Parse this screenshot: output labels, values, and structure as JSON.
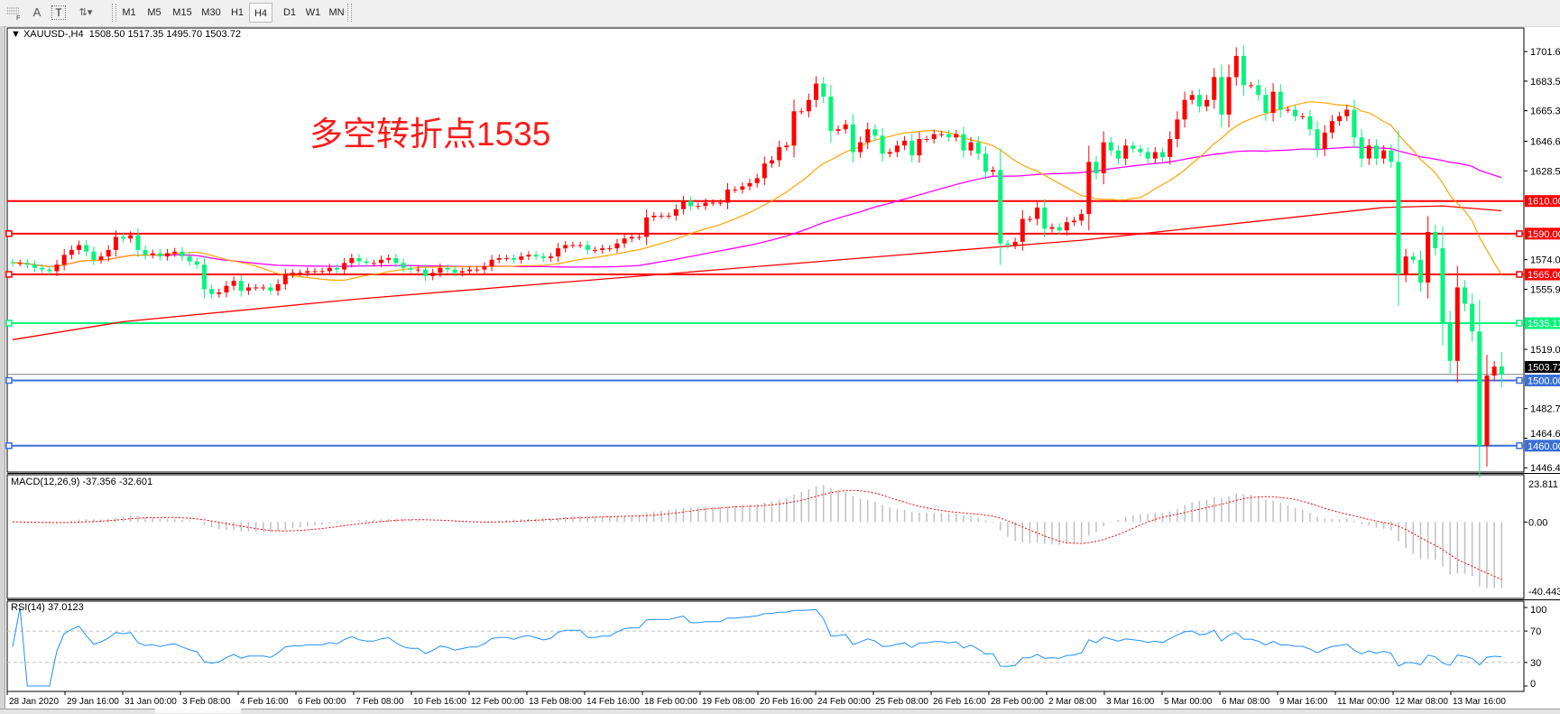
{
  "toolbar": {
    "tools": [
      {
        "name": "grid-f-icon",
        "label": "F"
      },
      {
        "name": "text-icon",
        "label": "A"
      },
      {
        "name": "text-label-icon",
        "label": "T"
      },
      {
        "name": "arrows-icon",
        "label": "⇅▾"
      }
    ],
    "timeframes": [
      "M1",
      "M5",
      "M15",
      "M30",
      "H1",
      "H4",
      "D1",
      "W1",
      "MN"
    ],
    "selected_timeframe": "H4"
  },
  "chart_header": {
    "symbol": "XAUUSD-,H4",
    "open": "1508.50",
    "high": "1517.35",
    "low": "1495.70",
    "close": "1503.72"
  },
  "annotation": "多空转折点1535",
  "colors": {
    "bull": "#ff0000",
    "bear": "#00f57a",
    "ma_fast": "#ffa500",
    "ma_mid": "#ff00ff",
    "ma_slow": "#ff0000",
    "macd_hist": "#c0c0c0",
    "macd_signal": "#ff0000",
    "rsi": "#1e90ff"
  },
  "chart_data": {
    "type": "candlestick",
    "symbol": "XAUUSD-",
    "timeframe": "H4",
    "ylim": [
      1443.8,
      1716.0
    ],
    "last_bar": {
      "open": 1508.5,
      "high": 1517.35,
      "low": 1495.7,
      "close": 1503.72
    },
    "close": [
      1572,
      1572,
      1571,
      1569,
      1568,
      1567,
      1571,
      1577,
      1580,
      1583,
      1579,
      1574,
      1576,
      1580,
      1588,
      1587,
      1589,
      1580,
      1577,
      1578,
      1576,
      1578,
      1579,
      1576,
      1573,
      1571,
      1556,
      1553,
      1554,
      1558,
      1561,
      1555,
      1557,
      1557,
      1557,
      1555,
      1559,
      1565,
      1566,
      1566,
      1567,
      1567,
      1567,
      1569,
      1568,
      1572,
      1575,
      1573,
      1572,
      1572,
      1574,
      1575,
      1572,
      1569,
      1568,
      1568,
      1564,
      1566,
      1569,
      1568,
      1566,
      1567,
      1568,
      1568,
      1570,
      1574,
      1575,
      1575,
      1574,
      1576,
      1577,
      1576,
      1575,
      1576,
      1581,
      1583,
      1583,
      1583,
      1580,
      1580,
      1581,
      1581,
      1584,
      1587,
      1588,
      1588,
      1600,
      1601,
      1601,
      1601,
      1605,
      1610,
      1607,
      1607,
      1609,
      1609,
      1609,
      1617,
      1617,
      1619,
      1621,
      1624,
      1633,
      1635,
      1643,
      1644,
      1665,
      1665,
      1672,
      1682,
      1674,
      1653,
      1654,
      1657,
      1640,
      1646,
      1654,
      1650,
      1639,
      1640,
      1644,
      1647,
      1638,
      1648,
      1648,
      1651,
      1651,
      1649,
      1651,
      1641,
      1646,
      1639,
      1628,
      1629,
      1584,
      1583,
      1585,
      1599,
      1599,
      1606,
      1593,
      1594,
      1592,
      1597,
      1598,
      1602,
      1634,
      1627,
      1646,
      1641,
      1636,
      1644,
      1642,
      1640,
      1636,
      1640,
      1637,
      1648,
      1660,
      1672,
      1675,
      1668,
      1672,
      1686,
      1663,
      1686,
      1699,
      1681,
      1681,
      1675,
      1664,
      1677,
      1666,
      1666,
      1662,
      1662,
      1654,
      1642,
      1652,
      1659,
      1662,
      1666,
      1649,
      1636,
      1644,
      1636,
      1641,
      1634,
      1565,
      1576,
      1574,
      1560,
      1591,
      1581,
      1535,
      1512,
      1557,
      1547,
      1530,
      1460,
      1503,
      1508.5,
      1503.72
    ],
    "price_ticks": [
      "1701.65",
      "1683.50",
      "1665.35",
      "1646.65",
      "1628.50",
      "1574.05",
      "1555.90",
      "1519.05",
      "1482.75",
      "1464.60",
      "1446.45"
    ],
    "x_labels": [
      "28 Jan 2020",
      "29 Jan 16:00",
      "31 Jan 00:00",
      "3 Feb 08:00",
      "4 Feb 16:00",
      "6 Feb 00:00",
      "7 Feb 08:00",
      "10 Feb 16:00",
      "12 Feb 00:00",
      "13 Feb 08:00",
      "14 Feb 16:00",
      "18 Feb 00:00",
      "19 Feb 08:00",
      "20 Feb 16:00",
      "24 Feb 00:00",
      "25 Feb 08:00",
      "26 Feb 16:00",
      "28 Feb 00:00",
      "2 Mar 08:00",
      "3 Mar 16:00",
      "5 Mar 00:00",
      "6 Mar 08:00",
      "9 Mar 16:00",
      "11 Mar 00:00",
      "12 Mar 08:00",
      "13 Mar 16:00"
    ],
    "horizontal_lines": [
      {
        "price": 1610.0,
        "label": "1610.00",
        "color": "#ff0000",
        "marked": false
      },
      {
        "price": 1590.0,
        "label": "1590.00",
        "color": "#ff0000",
        "marked": true
      },
      {
        "price": 1565.0,
        "label": "1565.00",
        "color": "#ff0000",
        "marked": true
      },
      {
        "price": 1535.11,
        "label": "1535.11",
        "color": "#00f57a",
        "marked": true
      },
      {
        "price": 1500.0,
        "label": "1500.00",
        "color": "#3a6fd8",
        "marked": true
      },
      {
        "price": 1460.0,
        "label": "1460.00",
        "color": "#3a6fd8",
        "marked": true
      }
    ],
    "current_price": {
      "price": 1503.72,
      "label": "1503.72",
      "color": "#808080"
    },
    "slow_ma_points": [
      [
        0,
        1525
      ],
      [
        15,
        1536
      ],
      [
        47,
        1550
      ],
      [
        96,
        1568
      ],
      [
        145,
        1586
      ],
      [
        186,
        1606
      ],
      [
        194,
        1607
      ],
      [
        202,
        1604
      ]
    ],
    "macd": {
      "label": "MACD(12,26,9) -37.356 -32.601",
      "ylim": [
        -40.443,
        23.811
      ],
      "ticks": [
        "23.811",
        "0.00",
        "-40.443"
      ]
    },
    "rsi": {
      "label": "RSI(14) 37.0123",
      "ylim": [
        0,
        100
      ],
      "levels": [
        70,
        30
      ],
      "ticks": [
        "100",
        "70",
        "30",
        "0"
      ]
    }
  }
}
